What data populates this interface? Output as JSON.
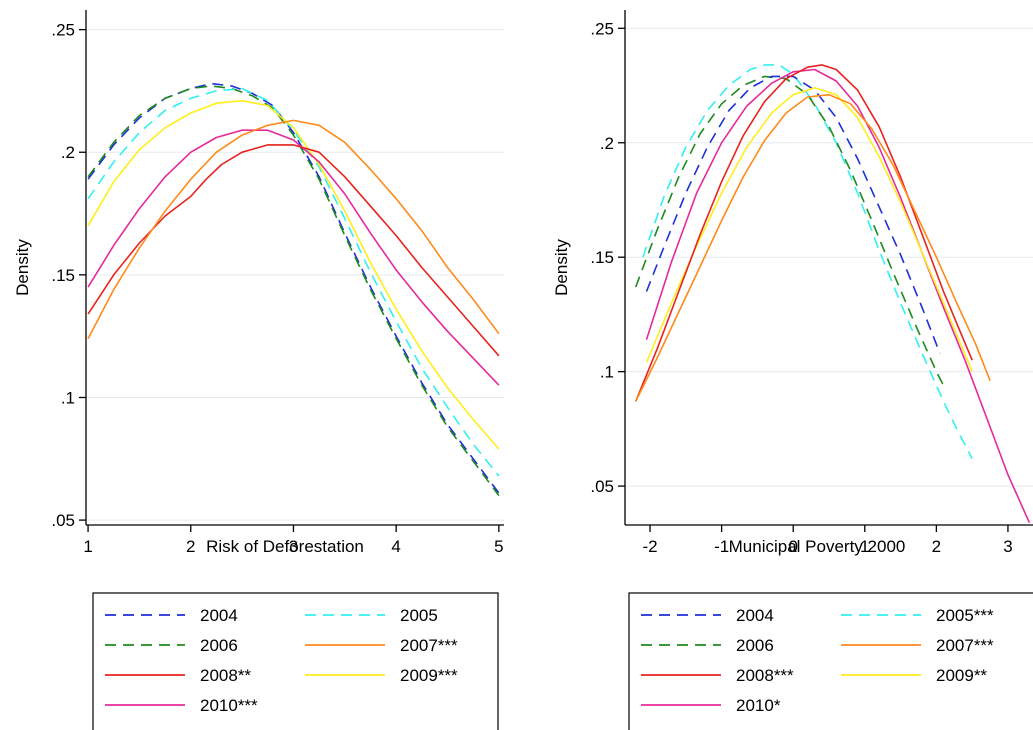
{
  "colors": {
    "2004": "#1f2fd9",
    "2005": "#33f0f0",
    "2006": "#1e8a1e",
    "2007": "#ff8a1a",
    "2008": "#e8231f",
    "2009": "#ffee1a",
    "2010": "#e62a9a",
    "grid": "#e4ebef",
    "axis": "#000000"
  },
  "chart_data": [
    {
      "type": "line",
      "xlabel": "Risk of Deforestation",
      "ylabel": "Density",
      "xlim": [
        0.98,
        5.05
      ],
      "ylim": [
        0.048,
        0.258
      ],
      "xticks": [
        1,
        2,
        3,
        4,
        5
      ],
      "xtick_labels": [
        "1",
        "2",
        "3",
        "4",
        "5"
      ],
      "yticks": [
        0.05,
        0.1,
        0.15,
        0.2,
        0.25
      ],
      "ytick_labels": [
        ".05",
        ".1",
        ".15",
        ".2",
        ".25"
      ],
      "grid": "horizontal",
      "legend_position": "bottom",
      "series": [
        {
          "name": "2004",
          "year": "2004",
          "dash": true,
          "x": [
            1,
            1.25,
            1.5,
            1.75,
            2,
            2.2,
            2.4,
            2.6,
            2.8,
            3,
            3.25,
            3.5,
            3.75,
            4,
            4.25,
            4.5,
            4.75,
            5
          ],
          "y": [
            0.189,
            0.203,
            0.214,
            0.222,
            0.226,
            0.228,
            0.227,
            0.224,
            0.219,
            0.208,
            0.19,
            0.167,
            0.145,
            0.125,
            0.106,
            0.089,
            0.075,
            0.061
          ]
        },
        {
          "name": "2006",
          "year": "2006",
          "dash": true,
          "x": [
            1,
            1.25,
            1.5,
            1.75,
            2,
            2.2,
            2.4,
            2.6,
            2.8,
            3,
            3.25,
            3.5,
            3.75,
            4,
            4.25,
            4.5,
            4.75,
            5
          ],
          "y": [
            0.19,
            0.204,
            0.215,
            0.222,
            0.226,
            0.227,
            0.226,
            0.223,
            0.218,
            0.207,
            0.189,
            0.166,
            0.144,
            0.124,
            0.105,
            0.088,
            0.074,
            0.06
          ]
        },
        {
          "name": "2005",
          "year": "2005",
          "dash": true,
          "x": [
            1,
            1.25,
            1.5,
            1.75,
            2,
            2.25,
            2.5,
            2.75,
            3,
            3.25,
            3.5,
            3.75,
            4,
            4.25,
            4.5,
            4.75,
            5
          ],
          "y": [
            0.181,
            0.196,
            0.208,
            0.217,
            0.222,
            0.225,
            0.226,
            0.221,
            0.209,
            0.194,
            0.173,
            0.151,
            0.131,
            0.112,
            0.096,
            0.081,
            0.068
          ]
        },
        {
          "name": "2009***",
          "year": "2009",
          "dash": false,
          "x": [
            1,
            1.25,
            1.5,
            1.75,
            2,
            2.25,
            2.5,
            2.75,
            3,
            3.25,
            3.5,
            3.75,
            4,
            4.25,
            4.5,
            4.75,
            5
          ],
          "y": [
            0.17,
            0.188,
            0.201,
            0.21,
            0.216,
            0.22,
            0.221,
            0.219,
            0.21,
            0.195,
            0.176,
            0.155,
            0.136,
            0.119,
            0.104,
            0.091,
            0.079
          ]
        },
        {
          "name": "2010***",
          "year": "2010",
          "dash": false,
          "x": [
            1,
            1.25,
            1.5,
            1.75,
            2,
            2.25,
            2.5,
            2.75,
            3,
            3.25,
            3.5,
            3.75,
            4,
            4.25,
            4.5,
            4.75,
            5
          ],
          "y": [
            0.145,
            0.162,
            0.177,
            0.19,
            0.2,
            0.206,
            0.209,
            0.209,
            0.205,
            0.196,
            0.183,
            0.167,
            0.152,
            0.139,
            0.127,
            0.116,
            0.105
          ]
        },
        {
          "name": "2008**",
          "year": "2008",
          "dash": false,
          "x": [
            1,
            1.25,
            1.5,
            1.75,
            2,
            2.15,
            2.3,
            2.5,
            2.75,
            3,
            3.25,
            3.5,
            3.75,
            4,
            4.25,
            4.5,
            4.75,
            5
          ],
          "y": [
            0.134,
            0.15,
            0.163,
            0.174,
            0.182,
            0.189,
            0.195,
            0.2,
            0.203,
            0.203,
            0.2,
            0.19,
            0.178,
            0.166,
            0.153,
            0.141,
            0.129,
            0.117
          ]
        },
        {
          "name": "2007***",
          "year": "2007",
          "dash": false,
          "x": [
            1,
            1.25,
            1.5,
            1.75,
            2,
            2.25,
            2.5,
            2.75,
            3,
            3.25,
            3.5,
            3.75,
            4,
            4.25,
            4.5,
            4.75,
            5
          ],
          "y": [
            0.124,
            0.144,
            0.161,
            0.176,
            0.189,
            0.2,
            0.207,
            0.211,
            0.213,
            0.211,
            0.204,
            0.193,
            0.181,
            0.168,
            0.153,
            0.14,
            0.126
          ]
        }
      ],
      "legend": [
        {
          "label": "2004",
          "year": "2004",
          "dash": true
        },
        {
          "label": "2005",
          "year": "2005",
          "dash": true
        },
        {
          "label": "2006",
          "year": "2006",
          "dash": true
        },
        {
          "label": "2007***",
          "year": "2007",
          "dash": false
        },
        {
          "label": "2008**",
          "year": "2008",
          "dash": false
        },
        {
          "label": "2009***",
          "year": "2009",
          "dash": false
        },
        {
          "label": "2010***",
          "year": "2010",
          "dash": false
        }
      ]
    },
    {
      "type": "line",
      "xlabel": "Municipal Poverty 2000",
      "ylabel": "Density",
      "xlim": [
        -2.35,
        3.35
      ],
      "ylim": [
        0.033,
        0.258
      ],
      "xticks": [
        -2,
        -1,
        0,
        1,
        2,
        3
      ],
      "xtick_labels": [
        "-2",
        "-1",
        "0",
        "1",
        "2",
        "3"
      ],
      "yticks": [
        0.05,
        0.1,
        0.15,
        0.2,
        0.25
      ],
      "ytick_labels": [
        ".05",
        ".1",
        ".15",
        ".2",
        ".25"
      ],
      "grid": "horizontal",
      "legend_position": "bottom",
      "series": [
        {
          "name": "2005***",
          "year": "2005",
          "dash": true,
          "x": [
            -2.1,
            -1.8,
            -1.5,
            -1.2,
            -0.9,
            -0.6,
            -0.4,
            -0.2,
            0,
            0.3,
            0.6,
            0.9,
            1.2,
            1.5,
            1.8,
            2.1,
            2.3,
            2.5
          ],
          "y": [
            0.15,
            0.177,
            0.198,
            0.214,
            0.225,
            0.232,
            0.234,
            0.234,
            0.23,
            0.217,
            0.2,
            0.178,
            0.153,
            0.13,
            0.108,
            0.087,
            0.074,
            0.062
          ]
        },
        {
          "name": "2006",
          "year": "2006",
          "dash": true,
          "x": [
            -2.2,
            -1.9,
            -1.6,
            -1.3,
            -1.0,
            -0.7,
            -0.4,
            -0.1,
            0.2,
            0.5,
            0.8,
            1.1,
            1.4,
            1.7,
            2.0,
            2.1
          ],
          "y": [
            0.137,
            0.162,
            0.185,
            0.204,
            0.217,
            0.225,
            0.229,
            0.228,
            0.221,
            0.207,
            0.188,
            0.166,
            0.143,
            0.121,
            0.1,
            0.094
          ]
        },
        {
          "name": "2004",
          "year": "2004",
          "dash": true,
          "x": [
            -2.05,
            -1.8,
            -1.5,
            -1.2,
            -0.9,
            -0.6,
            -0.3,
            0,
            0.3,
            0.6,
            0.9,
            1.2,
            1.5,
            1.8,
            2.05
          ],
          "y": [
            0.135,
            0.155,
            0.178,
            0.198,
            0.214,
            0.224,
            0.229,
            0.229,
            0.223,
            0.211,
            0.193,
            0.172,
            0.151,
            0.128,
            0.108
          ]
        },
        {
          "name": "2010*",
          "year": "2010",
          "dash": false,
          "x": [
            -2.05,
            -1.7,
            -1.35,
            -1.0,
            -0.65,
            -0.3,
            0,
            0.3,
            0.6,
            0.9,
            1.2,
            1.5,
            1.8,
            2.1,
            2.4,
            2.7,
            3.0,
            3.3
          ],
          "y": [
            0.114,
            0.148,
            0.178,
            0.2,
            0.216,
            0.226,
            0.231,
            0.232,
            0.227,
            0.216,
            0.198,
            0.176,
            0.152,
            0.128,
            0.105,
            0.08,
            0.055,
            0.034
          ]
        },
        {
          "name": "2009**",
          "year": "2009",
          "dash": false,
          "x": [
            -2.05,
            -1.7,
            -1.35,
            -1.0,
            -0.65,
            -0.3,
            0,
            0.3,
            0.6,
            0.9,
            1.2,
            1.5,
            1.8,
            2.1,
            2.3,
            2.5
          ],
          "y": [
            0.104,
            0.13,
            0.155,
            0.178,
            0.198,
            0.213,
            0.221,
            0.224,
            0.221,
            0.211,
            0.194,
            0.174,
            0.152,
            0.13,
            0.115,
            0.1
          ]
        },
        {
          "name": "2008***",
          "year": "2008",
          "dash": false,
          "x": [
            -2.2,
            -1.9,
            -1.6,
            -1.3,
            -1.0,
            -0.7,
            -0.4,
            -0.1,
            0.2,
            0.4,
            0.6,
            0.9,
            1.2,
            1.5,
            1.8,
            2.1,
            2.3,
            2.5
          ],
          "y": [
            0.087,
            0.11,
            0.135,
            0.16,
            0.183,
            0.203,
            0.218,
            0.228,
            0.233,
            0.234,
            0.232,
            0.223,
            0.207,
            0.185,
            0.16,
            0.135,
            0.12,
            0.105
          ]
        },
        {
          "name": "2007***",
          "year": "2007",
          "dash": false,
          "x": [
            -2.2,
            -1.9,
            -1.6,
            -1.3,
            -1.0,
            -0.7,
            -0.4,
            -0.1,
            0.2,
            0.5,
            0.8,
            1.1,
            1.4,
            1.7,
            2.0,
            2.3,
            2.55,
            2.75
          ],
          "y": [
            0.087,
            0.106,
            0.126,
            0.146,
            0.166,
            0.185,
            0.201,
            0.213,
            0.22,
            0.221,
            0.217,
            0.206,
            0.19,
            0.17,
            0.15,
            0.129,
            0.112,
            0.096
          ]
        }
      ],
      "legend": [
        {
          "label": "2004",
          "year": "2004",
          "dash": true
        },
        {
          "label": "2005***",
          "year": "2005",
          "dash": true
        },
        {
          "label": "2006",
          "year": "2006",
          "dash": true
        },
        {
          "label": "2007***",
          "year": "2007",
          "dash": false
        },
        {
          "label": "2008***",
          "year": "2008",
          "dash": false
        },
        {
          "label": "2009**",
          "year": "2009",
          "dash": false
        },
        {
          "label": "2010*",
          "year": "2010",
          "dash": false
        }
      ]
    }
  ]
}
